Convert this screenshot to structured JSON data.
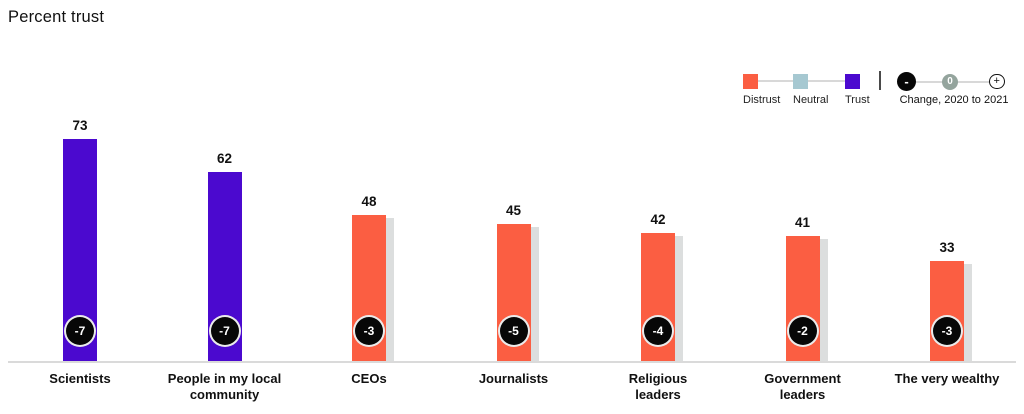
{
  "title": "Percent trust",
  "colors": {
    "distrust": "#FB5E42",
    "neutral": "#A6C8D1",
    "trust": "#4B09CF",
    "shadow": "#DCDEDE",
    "badge_bg": "#070707",
    "badge_text": "#FFFFFF",
    "baseline": "#DADADA",
    "zero_circle": "#94A49D",
    "minus_circle": "#070707",
    "connector": "#D8D8D8"
  },
  "legend": {
    "items": [
      {
        "label": "Distrust",
        "color_key": "distrust"
      },
      {
        "label": "Neutral",
        "color_key": "neutral"
      },
      {
        "label": "Trust",
        "color_key": "trust"
      }
    ],
    "change_scale": {
      "minus_symbol": "-",
      "zero_symbol": "0",
      "plus_symbol": "+",
      "caption": "Change, 2020 to 2021"
    }
  },
  "chart_data": {
    "type": "bar",
    "title": "Percent trust",
    "categories": [
      "Scientists",
      "People in my local community",
      "CEOs",
      "Journalists",
      "Religious leaders",
      "Government leaders",
      "The very wealthy"
    ],
    "category_lines": [
      [
        "Scientists"
      ],
      [
        "People in my local",
        "community"
      ],
      [
        "CEOs"
      ],
      [
        "Journalists"
      ],
      [
        "Religious",
        "leaders"
      ],
      [
        "Government",
        "leaders"
      ],
      [
        "The very wealthy"
      ]
    ],
    "values": [
      73,
      62,
      48,
      45,
      42,
      41,
      33
    ],
    "changes": [
      -7,
      -7,
      -3,
      -5,
      -4,
      -2,
      -3
    ],
    "change_labels": [
      "-7",
      "-7",
      "-3",
      "-5",
      "-4",
      "-2",
      "-3"
    ],
    "groups": [
      "trust",
      "trust",
      "distrust",
      "distrust",
      "distrust",
      "distrust",
      "distrust"
    ],
    "ylim": [
      0,
      100
    ],
    "xlabel": "",
    "ylabel": "Percent trust",
    "grid": false,
    "legend_position": "top-right",
    "change_period": "2020 to 2021"
  }
}
